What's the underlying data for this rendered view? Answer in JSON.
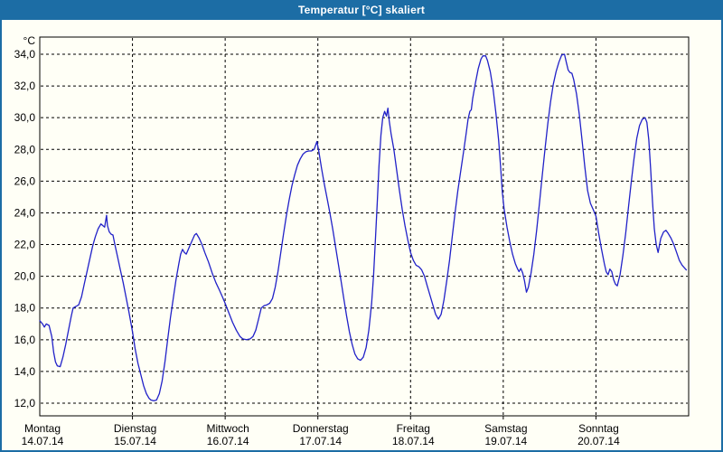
{
  "window": {
    "title": "Temperatur [°C] skaliert"
  },
  "colors": {
    "titlebar_bg": "#1c6da5",
    "titlebar_text": "#ffffff",
    "plot_background": "#fffff6",
    "line_color": "#2121c8",
    "grid_color": "#000000",
    "axis_color": "#000000",
    "label_color": "#000000"
  },
  "chart_data": {
    "type": "line",
    "title": "Temperatur [°C] skaliert",
    "grid": "dashed",
    "legend": "none",
    "y_axis": {
      "unit": "°C",
      "grid_min": 12,
      "grid_max": 34,
      "step": 2,
      "tick_labels": [
        "34,0",
        "32,0",
        "30,0",
        "28,0",
        "26,0",
        "24,0",
        "22,0",
        "20,0",
        "18,0",
        "16,0",
        "14,0",
        "12,0"
      ]
    },
    "x_axis": {
      "range_days": [
        0,
        7
      ],
      "day_labels": [
        {
          "name": "Montag",
          "date": "14.07.14"
        },
        {
          "name": "Dienstag",
          "date": "15.07.14"
        },
        {
          "name": "Mittwoch",
          "date": "16.07.14"
        },
        {
          "name": "Donnerstag",
          "date": "17.07.14"
        },
        {
          "name": "Freitag",
          "date": "18.07.14"
        },
        {
          "name": "Samstag",
          "date": "19.07.14"
        },
        {
          "name": "Sonntag",
          "date": "20.07.14"
        }
      ]
    },
    "series": [
      {
        "name": "Temperatur",
        "color": "#2121c8",
        "points": [
          [
            0.0,
            17.2
          ],
          [
            0.03,
            17.0
          ],
          [
            0.05,
            16.8
          ],
          [
            0.07,
            17.0
          ],
          [
            0.1,
            16.9
          ],
          [
            0.13,
            16.2
          ],
          [
            0.15,
            15.2
          ],
          [
            0.17,
            14.6
          ],
          [
            0.19,
            14.35
          ],
          [
            0.22,
            14.3
          ],
          [
            0.25,
            14.9
          ],
          [
            0.28,
            15.7
          ],
          [
            0.31,
            16.6
          ],
          [
            0.34,
            17.5
          ],
          [
            0.36,
            18.0
          ],
          [
            0.39,
            18.1
          ],
          [
            0.42,
            18.2
          ],
          [
            0.45,
            18.7
          ],
          [
            0.48,
            19.5
          ],
          [
            0.51,
            20.3
          ],
          [
            0.54,
            21.1
          ],
          [
            0.57,
            21.9
          ],
          [
            0.6,
            22.5
          ],
          [
            0.63,
            23.0
          ],
          [
            0.66,
            23.3
          ],
          [
            0.68,
            23.2
          ],
          [
            0.7,
            23.1
          ],
          [
            0.72,
            23.85
          ],
          [
            0.73,
            23.2
          ],
          [
            0.75,
            22.8
          ],
          [
            0.77,
            22.65
          ],
          [
            0.79,
            22.6
          ],
          [
            0.81,
            22.0
          ],
          [
            0.84,
            21.2
          ],
          [
            0.87,
            20.4
          ],
          [
            0.9,
            19.6
          ],
          [
            0.93,
            18.7
          ],
          [
            0.96,
            17.8
          ],
          [
            1.0,
            16.5
          ],
          [
            1.03,
            15.4
          ],
          [
            1.06,
            14.5
          ],
          [
            1.09,
            13.8
          ],
          [
            1.12,
            13.1
          ],
          [
            1.15,
            12.6
          ],
          [
            1.18,
            12.3
          ],
          [
            1.2,
            12.2
          ],
          [
            1.23,
            12.15
          ],
          [
            1.26,
            12.2
          ],
          [
            1.29,
            12.6
          ],
          [
            1.32,
            13.4
          ],
          [
            1.35,
            14.6
          ],
          [
            1.38,
            16.0
          ],
          [
            1.41,
            17.4
          ],
          [
            1.44,
            18.6
          ],
          [
            1.47,
            19.8
          ],
          [
            1.5,
            20.8
          ],
          [
            1.52,
            21.4
          ],
          [
            1.54,
            21.7
          ],
          [
            1.56,
            21.5
          ],
          [
            1.58,
            21.4
          ],
          [
            1.61,
            21.8
          ],
          [
            1.64,
            22.2
          ],
          [
            1.67,
            22.6
          ],
          [
            1.69,
            22.7
          ],
          [
            1.72,
            22.4
          ],
          [
            1.75,
            22.0
          ],
          [
            1.78,
            21.5
          ],
          [
            1.82,
            20.9
          ],
          [
            1.86,
            20.2
          ],
          [
            1.9,
            19.6
          ],
          [
            1.94,
            19.1
          ],
          [
            1.97,
            18.7
          ],
          [
            2.0,
            18.3
          ],
          [
            2.04,
            17.7
          ],
          [
            2.08,
            17.1
          ],
          [
            2.12,
            16.6
          ],
          [
            2.16,
            16.2
          ],
          [
            2.19,
            16.05
          ],
          [
            2.23,
            16.0
          ],
          [
            2.27,
            16.05
          ],
          [
            2.3,
            16.2
          ],
          [
            2.33,
            16.6
          ],
          [
            2.36,
            17.3
          ],
          [
            2.39,
            18.0
          ],
          [
            2.42,
            18.15
          ],
          [
            2.45,
            18.2
          ],
          [
            2.48,
            18.3
          ],
          [
            2.51,
            18.6
          ],
          [
            2.54,
            19.3
          ],
          [
            2.57,
            20.3
          ],
          [
            2.6,
            21.5
          ],
          [
            2.63,
            22.7
          ],
          [
            2.66,
            23.8
          ],
          [
            2.69,
            24.8
          ],
          [
            2.72,
            25.7
          ],
          [
            2.75,
            26.4
          ],
          [
            2.78,
            27.0
          ],
          [
            2.81,
            27.4
          ],
          [
            2.84,
            27.7
          ],
          [
            2.87,
            27.85
          ],
          [
            2.9,
            27.9
          ],
          [
            2.93,
            27.9
          ],
          [
            2.96,
            28.0
          ],
          [
            2.99,
            28.5
          ],
          [
            3.01,
            27.9
          ],
          [
            3.04,
            26.8
          ],
          [
            3.07,
            25.8
          ],
          [
            3.1,
            24.9
          ],
          [
            3.13,
            24.0
          ],
          [
            3.16,
            23.0
          ],
          [
            3.19,
            21.9
          ],
          [
            3.22,
            20.8
          ],
          [
            3.25,
            19.7
          ],
          [
            3.28,
            18.6
          ],
          [
            3.31,
            17.5
          ],
          [
            3.34,
            16.5
          ],
          [
            3.37,
            15.7
          ],
          [
            3.4,
            15.1
          ],
          [
            3.43,
            14.8
          ],
          [
            3.46,
            14.7
          ],
          [
            3.49,
            14.9
          ],
          [
            3.52,
            15.5
          ],
          [
            3.55,
            16.6
          ],
          [
            3.58,
            18.3
          ],
          [
            3.6,
            20.0
          ],
          [
            3.62,
            22.2
          ],
          [
            3.64,
            24.6
          ],
          [
            3.66,
            27.0
          ],
          [
            3.68,
            28.9
          ],
          [
            3.7,
            30.0
          ],
          [
            3.72,
            30.4
          ],
          [
            3.74,
            30.1
          ],
          [
            3.755,
            30.6
          ],
          [
            3.77,
            29.8
          ],
          [
            3.79,
            29.0
          ],
          [
            3.82,
            28.0
          ],
          [
            3.85,
            26.7
          ],
          [
            3.88,
            25.4
          ],
          [
            3.91,
            24.2
          ],
          [
            3.94,
            23.2
          ],
          [
            3.97,
            22.3
          ],
          [
            4.0,
            21.5
          ],
          [
            4.03,
            21.0
          ],
          [
            4.06,
            20.7
          ],
          [
            4.09,
            20.6
          ],
          [
            4.12,
            20.4
          ],
          [
            4.15,
            20.0
          ],
          [
            4.18,
            19.4
          ],
          [
            4.21,
            18.8
          ],
          [
            4.24,
            18.2
          ],
          [
            4.27,
            17.6
          ],
          [
            4.3,
            17.3
          ],
          [
            4.33,
            17.6
          ],
          [
            4.36,
            18.5
          ],
          [
            4.39,
            19.7
          ],
          [
            4.42,
            21.0
          ],
          [
            4.45,
            22.5
          ],
          [
            4.48,
            24.0
          ],
          [
            4.51,
            25.4
          ],
          [
            4.54,
            26.6
          ],
          [
            4.57,
            27.8
          ],
          [
            4.6,
            29.0
          ],
          [
            4.62,
            29.9
          ],
          [
            4.64,
            30.4
          ],
          [
            4.655,
            30.5
          ],
          [
            4.67,
            31.2
          ],
          [
            4.7,
            32.2
          ],
          [
            4.73,
            33.1
          ],
          [
            4.76,
            33.7
          ],
          [
            4.78,
            33.9
          ],
          [
            4.81,
            33.9
          ],
          [
            4.83,
            33.6
          ],
          [
            4.86,
            32.9
          ],
          [
            4.89,
            31.8
          ],
          [
            4.92,
            30.3
          ],
          [
            4.95,
            28.6
          ],
          [
            4.97,
            27.0
          ],
          [
            4.99,
            25.3
          ],
          [
            5.01,
            24.2
          ],
          [
            5.04,
            23.1
          ],
          [
            5.07,
            22.2
          ],
          [
            5.1,
            21.4
          ],
          [
            5.13,
            20.8
          ],
          [
            5.155,
            20.45
          ],
          [
            5.17,
            20.3
          ],
          [
            5.19,
            20.5
          ],
          [
            5.21,
            20.2
          ],
          [
            5.23,
            19.7
          ],
          [
            5.25,
            19.0
          ],
          [
            5.27,
            19.3
          ],
          [
            5.3,
            20.2
          ],
          [
            5.33,
            21.4
          ],
          [
            5.36,
            22.9
          ],
          [
            5.39,
            24.6
          ],
          [
            5.42,
            26.3
          ],
          [
            5.45,
            28.0
          ],
          [
            5.48,
            29.6
          ],
          [
            5.51,
            31.0
          ],
          [
            5.54,
            32.1
          ],
          [
            5.57,
            32.9
          ],
          [
            5.6,
            33.5
          ],
          [
            5.63,
            33.95
          ],
          [
            5.66,
            34.0
          ],
          [
            5.68,
            33.5
          ],
          [
            5.7,
            33.0
          ],
          [
            5.72,
            32.85
          ],
          [
            5.74,
            32.8
          ],
          [
            5.76,
            32.4
          ],
          [
            5.79,
            31.5
          ],
          [
            5.82,
            30.2
          ],
          [
            5.85,
            28.6
          ],
          [
            5.88,
            26.9
          ],
          [
            5.91,
            25.4
          ],
          [
            5.94,
            24.6
          ],
          [
            5.97,
            24.2
          ],
          [
            6.0,
            23.8
          ],
          [
            6.03,
            22.7
          ],
          [
            6.06,
            21.7
          ],
          [
            6.09,
            20.8
          ],
          [
            6.11,
            20.3
          ],
          [
            6.13,
            20.1
          ],
          [
            6.15,
            20.45
          ],
          [
            6.17,
            20.3
          ],
          [
            6.19,
            19.8
          ],
          [
            6.21,
            19.5
          ],
          [
            6.23,
            19.4
          ],
          [
            6.26,
            20.1
          ],
          [
            6.29,
            21.3
          ],
          [
            6.32,
            22.7
          ],
          [
            6.35,
            24.3
          ],
          [
            6.38,
            25.9
          ],
          [
            6.41,
            27.4
          ],
          [
            6.44,
            28.7
          ],
          [
            6.47,
            29.5
          ],
          [
            6.5,
            29.9
          ],
          [
            6.53,
            30.0
          ],
          [
            6.55,
            29.7
          ],
          [
            6.57,
            28.6
          ],
          [
            6.59,
            26.8
          ],
          [
            6.61,
            24.7
          ],
          [
            6.63,
            23.0
          ],
          [
            6.65,
            22.0
          ],
          [
            6.67,
            21.5
          ],
          [
            6.7,
            22.4
          ],
          [
            6.73,
            22.8
          ],
          [
            6.755,
            22.9
          ],
          [
            6.78,
            22.7
          ],
          [
            6.81,
            22.4
          ],
          [
            6.84,
            22.0
          ],
          [
            6.87,
            21.5
          ],
          [
            6.9,
            21.0
          ],
          [
            6.93,
            20.7
          ],
          [
            6.96,
            20.5
          ],
          [
            6.975,
            20.4
          ]
        ]
      }
    ]
  }
}
